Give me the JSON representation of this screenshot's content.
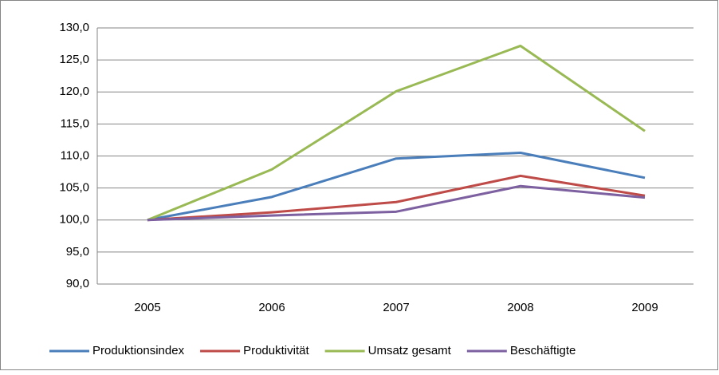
{
  "chart_data": {
    "type": "line",
    "categories": [
      "2005",
      "2006",
      "2007",
      "2008",
      "2009"
    ],
    "series": [
      {
        "name": "Produktionsindex",
        "color": "#4a7ebb",
        "values": [
          100,
          103.6,
          109.6,
          110.5,
          106.6
        ]
      },
      {
        "name": "Produktivität",
        "color": "#be4b48",
        "values": [
          100,
          101.2,
          102.8,
          106.9,
          103.8
        ]
      },
      {
        "name": "Umsatz gesamt",
        "color": "#98b954",
        "values": [
          100,
          107.9,
          120.1,
          127.2,
          113.9
        ]
      },
      {
        "name": "Beschäftigte",
        "color": "#7d60a0",
        "values": [
          100,
          100.7,
          101.3,
          105.3,
          103.5
        ]
      }
    ],
    "ylim": [
      90,
      130
    ],
    "yticks": [
      {
        "value": 90,
        "label": "90,0"
      },
      {
        "value": 95,
        "label": "95,0"
      },
      {
        "value": 100,
        "label": "100,0"
      },
      {
        "value": 105,
        "label": "105,0"
      },
      {
        "value": 110,
        "label": "110,0"
      },
      {
        "value": 115,
        "label": "115,0"
      },
      {
        "value": 120,
        "label": "120,0"
      },
      {
        "value": 125,
        "label": "125,0"
      },
      {
        "value": 130,
        "label": "130,0"
      }
    ],
    "grid": true,
    "legend": "bottom"
  }
}
